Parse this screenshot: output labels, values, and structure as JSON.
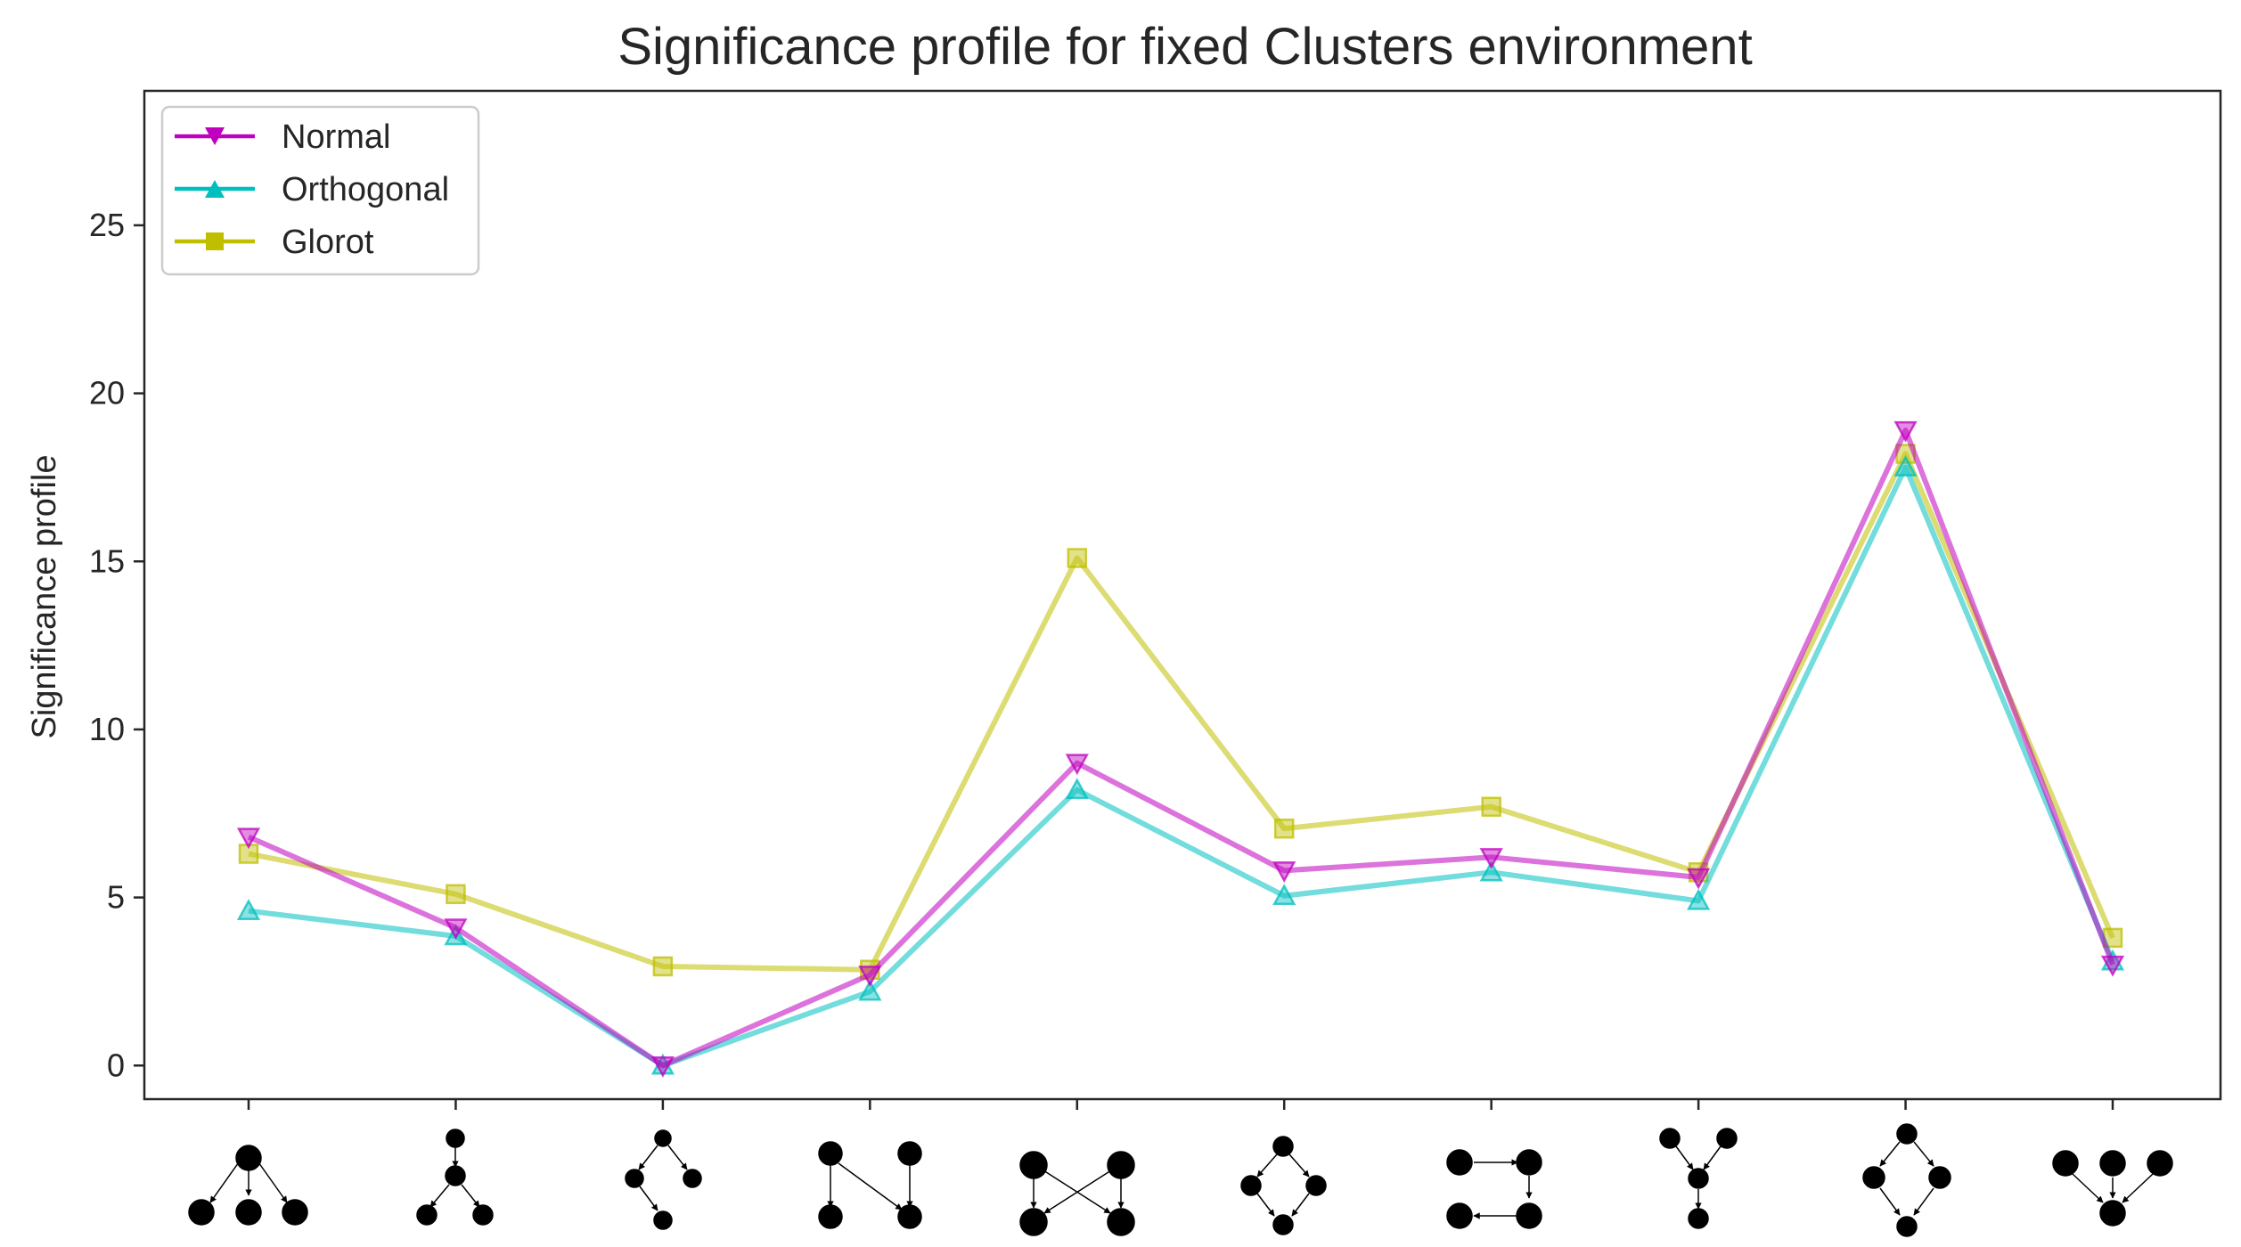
{
  "chart_data": {
    "type": "line",
    "title": "Significance profile for fixed Clusters environment",
    "xlabel": "",
    "ylabel": "Significance profile",
    "ylim": [
      -1,
      29
    ],
    "yticks": [
      0,
      5,
      10,
      15,
      20,
      25
    ],
    "x": [
      1,
      2,
      3,
      4,
      5,
      6,
      7,
      8,
      9,
      10
    ],
    "x_tick_labels": "network motif glyphs (three-node and four-node directed subgraphs)",
    "grid": false,
    "legend": "top-left",
    "series": [
      {
        "name": "Normal",
        "color": "#bf00bf",
        "marker": "triangle-down",
        "values": [
          6.8,
          4.1,
          0.0,
          2.7,
          9.0,
          5.8,
          6.2,
          5.6,
          18.9,
          3.0
        ]
      },
      {
        "name": "Orthogonal",
        "color": "#00bfbf",
        "marker": "triangle-up",
        "values": [
          4.6,
          3.85,
          0.0,
          2.2,
          8.2,
          5.05,
          5.75,
          4.9,
          17.8,
          3.1
        ]
      },
      {
        "name": "Glorot",
        "color": "#bfbf00",
        "marker": "square",
        "values": [
          6.3,
          5.1,
          2.95,
          2.85,
          15.1,
          7.05,
          7.7,
          5.75,
          18.2,
          3.8
        ]
      }
    ]
  }
}
